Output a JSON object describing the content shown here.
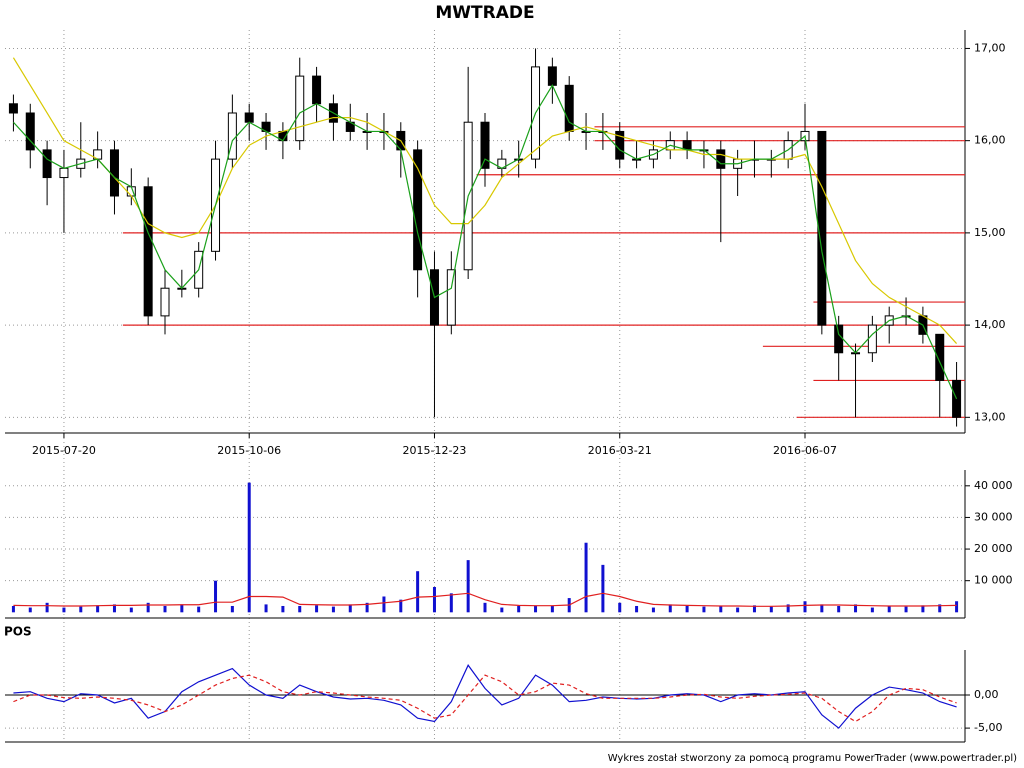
{
  "chart_data": [
    {
      "type": "candlestick",
      "title": "MWTRADE",
      "categories": [
        null,
        null,
        null,
        "2015-07-20",
        null,
        null,
        null,
        null,
        null,
        null,
        null,
        null,
        null,
        null,
        "2015-10-06",
        null,
        null,
        null,
        null,
        null,
        null,
        null,
        null,
        null,
        null,
        "2015-12-23",
        null,
        null,
        null,
        null,
        null,
        null,
        null,
        null,
        null,
        null,
        "2016-03-21",
        null,
        null,
        null,
        null,
        null,
        null,
        null,
        null,
        null,
        null,
        "2016-06-07",
        null,
        null,
        null,
        null,
        null,
        null,
        null,
        null,
        null
      ],
      "open": [
        16.4,
        16.3,
        15.9,
        15.6,
        15.7,
        15.8,
        15.9,
        15.4,
        15.5,
        14.1,
        14.4,
        14.4,
        14.8,
        15.8,
        16.3,
        16.2,
        16.1,
        16.0,
        16.7,
        16.4,
        16.2,
        16.1,
        16.1,
        16.1,
        15.9,
        14.6,
        14.0,
        14.6,
        16.2,
        15.7,
        15.8,
        15.8,
        16.8,
        16.6,
        16.1,
        16.1,
        16.1,
        15.8,
        15.8,
        15.9,
        16.0,
        15.9,
        15.9,
        15.7,
        15.8,
        15.8,
        15.8,
        16.0,
        16.1,
        14.0,
        13.7,
        13.7,
        14.0,
        14.1,
        14.1,
        13.9,
        13.4
      ],
      "high": [
        16.5,
        16.4,
        16.0,
        15.9,
        16.2,
        16.1,
        16.0,
        15.7,
        15.6,
        14.6,
        14.6,
        14.9,
        16.0,
        16.5,
        16.4,
        16.3,
        16.2,
        16.9,
        16.8,
        16.5,
        16.4,
        16.3,
        16.3,
        16.2,
        16.0,
        14.8,
        14.8,
        16.8,
        16.3,
        15.9,
        16.0,
        17.0,
        16.9,
        16.7,
        16.3,
        16.3,
        16.2,
        16.0,
        16.0,
        16.1,
        16.1,
        16.0,
        16.0,
        15.9,
        16.0,
        15.9,
        16.1,
        16.4,
        16.1,
        14.1,
        13.8,
        14.1,
        14.2,
        14.3,
        14.2,
        13.9,
        13.6
      ],
      "low": [
        16.1,
        15.7,
        15.3,
        15.0,
        15.6,
        15.7,
        15.2,
        15.3,
        14.0,
        13.9,
        14.3,
        14.3,
        14.7,
        15.7,
        16.0,
        15.9,
        15.8,
        15.9,
        16.2,
        16.0,
        16.0,
        15.9,
        15.9,
        15.6,
        14.3,
        13.0,
        13.9,
        14.5,
        15.5,
        15.6,
        15.6,
        15.7,
        16.4,
        16.0,
        15.9,
        15.9,
        15.7,
        15.7,
        15.7,
        15.8,
        15.8,
        15.7,
        14.9,
        15.4,
        15.6,
        15.6,
        15.7,
        15.9,
        13.9,
        13.4,
        13.0,
        13.6,
        13.8,
        14.0,
        13.8,
        13.0,
        12.9
      ],
      "close": [
        16.3,
        15.9,
        15.6,
        15.7,
        15.8,
        15.9,
        15.4,
        15.5,
        14.1,
        14.4,
        14.4,
        14.8,
        15.8,
        16.3,
        16.2,
        16.1,
        16.0,
        16.7,
        16.4,
        16.2,
        16.1,
        16.1,
        16.1,
        15.9,
        14.6,
        14.0,
        14.6,
        16.2,
        15.7,
        15.8,
        15.8,
        16.8,
        16.6,
        16.1,
        16.1,
        16.1,
        15.8,
        15.8,
        15.9,
        16.0,
        15.9,
        15.9,
        15.7,
        15.8,
        15.8,
        15.8,
        16.0,
        16.1,
        14.0,
        13.7,
        13.7,
        14.0,
        14.1,
        14.1,
        13.9,
        13.4,
        13.0
      ],
      "lines": [
        {
          "color": "#d8c800",
          "values": [
            16.9,
            16.6,
            16.3,
            16.0,
            15.9,
            15.8,
            15.6,
            15.4,
            15.1,
            15.0,
            14.95,
            15.0,
            15.3,
            15.7,
            15.95,
            16.05,
            16.1,
            16.15,
            16.2,
            16.25,
            16.25,
            16.2,
            16.1,
            16.0,
            15.7,
            15.3,
            15.1,
            15.1,
            15.3,
            15.6,
            15.75,
            15.9,
            16.05,
            16.1,
            16.15,
            16.1,
            16.05,
            16.0,
            15.95,
            15.9,
            15.9,
            15.85,
            15.85,
            15.8,
            15.8,
            15.8,
            15.8,
            15.85,
            15.5,
            15.1,
            14.7,
            14.45,
            14.3,
            14.2,
            14.1,
            14.0,
            13.8
          ]
        },
        {
          "color": "#1aa01a",
          "values": [
            16.2,
            16.0,
            15.8,
            15.7,
            15.75,
            15.8,
            15.6,
            15.5,
            15.0,
            14.6,
            14.4,
            14.6,
            15.3,
            16.0,
            16.2,
            16.1,
            16.0,
            16.3,
            16.4,
            16.3,
            16.2,
            16.1,
            16.1,
            15.9,
            15.0,
            14.3,
            14.4,
            15.4,
            15.8,
            15.7,
            15.8,
            16.3,
            16.6,
            16.2,
            16.1,
            16.1,
            15.9,
            15.8,
            15.85,
            15.95,
            15.9,
            15.9,
            15.75,
            15.75,
            15.8,
            15.8,
            15.9,
            16.05,
            14.8,
            13.9,
            13.7,
            13.9,
            14.05,
            14.1,
            14.0,
            13.6,
            13.2
          ]
        }
      ],
      "levels": [
        {
          "value": 16.15,
          "from": 35
        },
        {
          "value": 16.0,
          "from": 35
        },
        {
          "value": 15.63,
          "from": 28
        },
        {
          "value": 15.0,
          "from": 7
        },
        {
          "value": 14.0,
          "from": 7
        },
        {
          "value": 14.25,
          "from": 48
        },
        {
          "value": 13.77,
          "from": 45
        },
        {
          "value": 13.4,
          "from": 48
        },
        {
          "value": 13.0,
          "from": 47
        }
      ],
      "level_color": "#e02020",
      "ylim": [
        12.83,
        17.2
      ],
      "yticks": [
        {
          "value": 13,
          "label": "13,00"
        },
        {
          "value": 14,
          "label": "14,00"
        },
        {
          "value": 15,
          "label": "15,00"
        },
        {
          "value": 16,
          "label": "16,00"
        },
        {
          "value": 17,
          "label": "17,00"
        }
      ]
    },
    {
      "type": "bar",
      "values": [
        2000,
        1500,
        3000,
        1500,
        1800,
        2200,
        2500,
        1500,
        3000,
        2000,
        2500,
        1800,
        10000,
        2000,
        41000,
        2500,
        2000,
        2000,
        2200,
        1800,
        2500,
        3000,
        5000,
        4000,
        13000,
        8000,
        6000,
        16500,
        3000,
        1500,
        2000,
        2000,
        2000,
        4500,
        22000,
        15000,
        3000,
        2000,
        1500,
        2500,
        2000,
        1800,
        2000,
        1500,
        2200,
        1800,
        2500,
        3500,
        2500,
        2000,
        2500,
        1500,
        2000,
        1800,
        2200,
        2500,
        3500
      ],
      "color": "#1010d0",
      "average": {
        "color": "#e02020",
        "values": [
          2200,
          2100,
          2100,
          2000,
          2000,
          2100,
          2200,
          2200,
          2300,
          2300,
          2400,
          2400,
          3200,
          3200,
          5000,
          5000,
          4800,
          2500,
          2400,
          2300,
          2300,
          2500,
          3000,
          3500,
          4800,
          5000,
          5500,
          6000,
          4000,
          2500,
          2200,
          2100,
          2100,
          2300,
          5000,
          6000,
          5000,
          3500,
          2500,
          2300,
          2200,
          2100,
          2000,
          2000,
          1900,
          1900,
          2000,
          2200,
          2300,
          2300,
          2200,
          2100,
          2000,
          2000,
          2000,
          2100,
          2200
        ]
      },
      "ylim": [
        -1800,
        45000
      ],
      "yticks": [
        {
          "value": 10000,
          "label": "10 000"
        },
        {
          "value": 20000,
          "label": "20 000"
        },
        {
          "value": 30000,
          "label": "30 000"
        },
        {
          "value": 40000,
          "label": "40 000"
        }
      ]
    },
    {
      "type": "line",
      "title": "POS",
      "series": [
        {
          "color": "#1010d0",
          "dashed": false,
          "values": [
            0.3,
            0.5,
            -0.5,
            -1.0,
            0.2,
            0.0,
            -1.2,
            -0.5,
            -3.5,
            -2.5,
            0.5,
            2.0,
            3.0,
            4.0,
            1.5,
            0.0,
            -0.5,
            1.5,
            0.5,
            -0.3,
            -0.6,
            -0.5,
            -0.8,
            -1.5,
            -3.5,
            -4.0,
            -1.0,
            4.5,
            1.0,
            -1.5,
            -0.5,
            3.0,
            1.5,
            -1.0,
            -0.8,
            -0.3,
            -0.5,
            -0.6,
            -0.5,
            0.0,
            0.2,
            0.0,
            -1.0,
            0.0,
            0.2,
            0.0,
            0.3,
            0.5,
            -3.0,
            -5.0,
            -2.0,
            0.0,
            1.2,
            0.8,
            0.3,
            -1.0,
            -1.8
          ]
        },
        {
          "color": "#e02020",
          "dashed": true,
          "values": [
            -1.0,
            0.0,
            0.0,
            -0.4,
            -0.5,
            -0.3,
            -0.5,
            -0.8,
            -1.5,
            -2.5,
            -1.5,
            0.0,
            1.5,
            2.5,
            3.0,
            2.0,
            0.5,
            0.0,
            0.5,
            0.3,
            0.0,
            -0.3,
            -0.5,
            -0.8,
            -2.0,
            -3.5,
            -3.0,
            0.0,
            3.0,
            2.0,
            0.0,
            0.5,
            1.8,
            1.5,
            0.2,
            -0.5,
            -0.5,
            -0.5,
            -0.5,
            -0.3,
            0.0,
            0.1,
            -0.3,
            -0.5,
            -0.2,
            0.0,
            0.1,
            0.3,
            -0.5,
            -2.5,
            -4.0,
            -2.5,
            0.0,
            1.0,
            0.8,
            -0.3,
            -1.2
          ]
        }
      ],
      "ylim": [
        -7.1,
        6.8
      ],
      "yticks": [
        {
          "value": -5,
          "label": "-5,00"
        },
        {
          "value": 0,
          "label": "0,00"
        }
      ]
    }
  ],
  "footer": "Wykres został stworzony za pomocą programu PowerTrader (www.powertrader.pl)"
}
